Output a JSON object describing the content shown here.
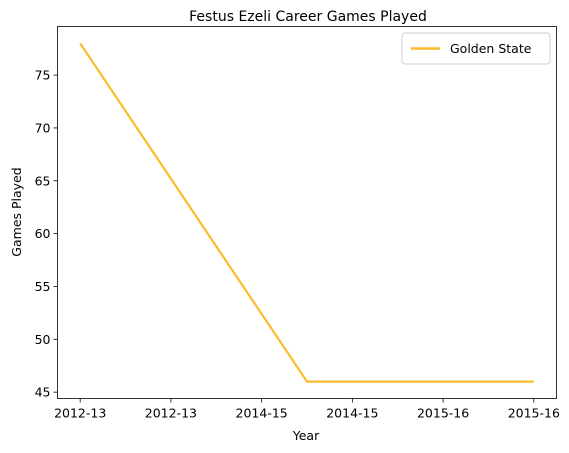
{
  "chart_data": {
    "type": "line",
    "title": "Festus Ezeli Career Games Played",
    "xlabel": "Year",
    "ylabel": "Games Played",
    "categories": [
      "2012-13",
      "2012-13",
      "2014-15",
      "2014-15",
      "2015-16",
      "2015-16"
    ],
    "x_ticks": [
      "2012-13",
      "2012-13",
      "2014-15",
      "2014-15",
      "2015-16",
      "2015-16"
    ],
    "y_ticks": [
      45,
      50,
      55,
      60,
      65,
      70,
      75
    ],
    "ylim": [
      44.4,
      79.6
    ],
    "xlim": [
      -0.25,
      5.25
    ],
    "series": [
      {
        "name": "Golden State",
        "color": "#fbbc2c",
        "points": [
          {
            "x": 0,
            "y": 78
          },
          {
            "x": 2.5,
            "y": 46
          },
          {
            "x": 5,
            "y": 46
          }
        ]
      }
    ],
    "legend": "top-right",
    "grid": false
  }
}
